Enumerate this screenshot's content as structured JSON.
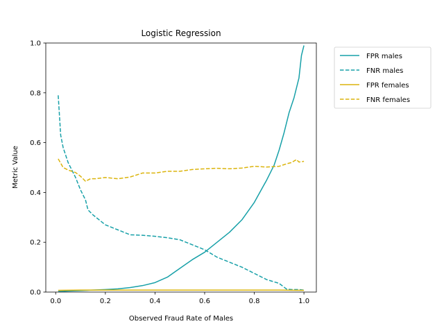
{
  "chart_data": {
    "type": "line",
    "title": "Logistic Regression",
    "xlabel": "Observed Fraud Rate of Males",
    "ylabel": "Metric Value",
    "xlim": [
      -0.04,
      1.05
    ],
    "ylim": [
      0,
      1
    ],
    "xticks": [
      0.0,
      0.2,
      0.4,
      0.6,
      0.8,
      1.0
    ],
    "xtick_labels": [
      "0.0",
      "0.2",
      "0.4",
      "0.6",
      "0.8",
      "1.0"
    ],
    "yticks": [
      0.0,
      0.2,
      0.4,
      0.6,
      0.8,
      1.0
    ],
    "ytick_labels": [
      "0.0",
      "0.2",
      "0.4",
      "0.6",
      "0.8",
      "1.0"
    ],
    "grid": false,
    "legend_position": "outside-top-right",
    "series": [
      {
        "name": "FPR males",
        "color": "#17a0a8",
        "style": "solid",
        "x": [
          0.01,
          0.05,
          0.1,
          0.15,
          0.2,
          0.25,
          0.3,
          0.35,
          0.4,
          0.45,
          0.5,
          0.55,
          0.6,
          0.65,
          0.7,
          0.75,
          0.8,
          0.85,
          0.88,
          0.9,
          0.92,
          0.94,
          0.96,
          0.98,
          0.99,
          1.0
        ],
        "y": [
          0.002,
          0.004,
          0.006,
          0.008,
          0.01,
          0.013,
          0.018,
          0.026,
          0.038,
          0.06,
          0.095,
          0.13,
          0.16,
          0.2,
          0.24,
          0.29,
          0.36,
          0.45,
          0.51,
          0.57,
          0.64,
          0.72,
          0.78,
          0.86,
          0.95,
          0.99
        ]
      },
      {
        "name": "FNR males",
        "color": "#17a0a8",
        "style": "dashed",
        "x": [
          0.01,
          0.02,
          0.03,
          0.05,
          0.08,
          0.1,
          0.12,
          0.13,
          0.15,
          0.2,
          0.25,
          0.3,
          0.35,
          0.4,
          0.45,
          0.5,
          0.55,
          0.6,
          0.65,
          0.7,
          0.75,
          0.8,
          0.85,
          0.9,
          0.93,
          0.95,
          0.98,
          1.0
        ],
        "y": [
          0.79,
          0.63,
          0.58,
          0.52,
          0.46,
          0.41,
          0.37,
          0.33,
          0.31,
          0.27,
          0.25,
          0.23,
          0.228,
          0.224,
          0.218,
          0.21,
          0.19,
          0.17,
          0.14,
          0.12,
          0.1,
          0.075,
          0.05,
          0.035,
          0.012,
          0.01,
          0.01,
          0.008
        ]
      },
      {
        "name": "FPR females",
        "color": "#dbb40c",
        "style": "solid",
        "x": [
          0.01,
          0.1,
          0.2,
          0.3,
          0.4,
          0.5,
          0.6,
          0.7,
          0.8,
          0.9,
          1.0
        ],
        "y": [
          0.007,
          0.008,
          0.008,
          0.008,
          0.008,
          0.008,
          0.008,
          0.008,
          0.008,
          0.008,
          0.007
        ]
      },
      {
        "name": "FNR females",
        "color": "#dbb40c",
        "style": "dashed",
        "x": [
          0.01,
          0.03,
          0.05,
          0.08,
          0.1,
          0.12,
          0.14,
          0.16,
          0.2,
          0.25,
          0.3,
          0.35,
          0.4,
          0.45,
          0.5,
          0.55,
          0.6,
          0.65,
          0.7,
          0.75,
          0.8,
          0.85,
          0.9,
          0.93,
          0.95,
          0.97,
          0.98,
          1.0
        ],
        "y": [
          0.535,
          0.5,
          0.49,
          0.48,
          0.465,
          0.445,
          0.455,
          0.455,
          0.46,
          0.455,
          0.462,
          0.478,
          0.478,
          0.485,
          0.485,
          0.492,
          0.495,
          0.497,
          0.495,
          0.498,
          0.505,
          0.502,
          0.505,
          0.515,
          0.52,
          0.532,
          0.522,
          0.525
        ]
      }
    ]
  }
}
